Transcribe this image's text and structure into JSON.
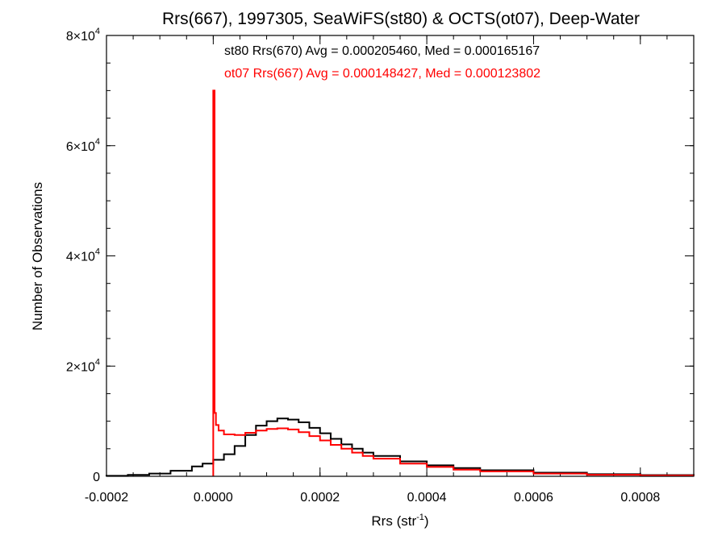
{
  "chart_data": {
    "type": "line",
    "title": "Rrs(667), 1997305, SeaWiFS(st80) & OCTS(ot07), Deep-Water",
    "xlabel": "Rrs (str",
    "xlabel_sup": "-1",
    "xlabel_suffix": ")",
    "ylabel": "Number of Observations",
    "xlim": [
      -0.0002,
      0.0009
    ],
    "ylim": [
      0,
      80000
    ],
    "x_ticks": [
      {
        "value": -0.0002,
        "label": "-0.0002"
      },
      {
        "value": 0.0,
        "label": "0.0000"
      },
      {
        "value": 0.0002,
        "label": "0.0002"
      },
      {
        "value": 0.0004,
        "label": "0.0004"
      },
      {
        "value": 0.0006,
        "label": "0.0006"
      },
      {
        "value": 0.0008,
        "label": "0.0008"
      }
    ],
    "y_ticks": [
      {
        "value": 0,
        "base": "0",
        "exp": ""
      },
      {
        "value": 20000,
        "base": "2×10",
        "exp": "4"
      },
      {
        "value": 40000,
        "base": "4×10",
        "exp": "4"
      },
      {
        "value": 60000,
        "base": "6×10",
        "exp": "4"
      },
      {
        "value": 80000,
        "base": "8×10",
        "exp": "4"
      }
    ],
    "x_minor_step": 5e-05,
    "y_minor_step": 5000,
    "series": [
      {
        "name": "st80 Rrs(670) Avg = 0.000205460, Med = 0.000165167",
        "color": "#000000",
        "points": [
          [
            -0.0002,
            100
          ],
          [
            -0.00016,
            250
          ],
          [
            -0.00012,
            500
          ],
          [
            -8e-05,
            1000
          ],
          [
            -4e-05,
            1800
          ],
          [
            -2e-05,
            2300
          ],
          [
            0.0,
            3000
          ],
          [
            2e-05,
            4000
          ],
          [
            4e-05,
            5500
          ],
          [
            6e-05,
            7500
          ],
          [
            8e-05,
            9200
          ],
          [
            0.0001,
            10000
          ],
          [
            0.00012,
            10500
          ],
          [
            0.00014,
            10300
          ],
          [
            0.00016,
            9800
          ],
          [
            0.00018,
            8800
          ],
          [
            0.0002,
            7800
          ],
          [
            0.00022,
            6800
          ],
          [
            0.00024,
            5800
          ],
          [
            0.00026,
            5000
          ],
          [
            0.00028,
            4300
          ],
          [
            0.0003,
            3700
          ],
          [
            0.00035,
            2700
          ],
          [
            0.0004,
            2000
          ],
          [
            0.00045,
            1500
          ],
          [
            0.0005,
            1100
          ],
          [
            0.0006,
            650
          ],
          [
            0.0007,
            380
          ],
          [
            0.0008,
            220
          ],
          [
            0.0009,
            120
          ]
        ]
      },
      {
        "name": "ot07 Rrs(667) Avg = 0.000148427, Med = 0.000123802",
        "color": "#ff0000",
        "points": [
          [
            0.0,
            70000
          ],
          [
            2.5e-06,
            11500
          ],
          [
            5e-06,
            9300
          ],
          [
            1e-05,
            8300
          ],
          [
            2e-05,
            7600
          ],
          [
            4e-05,
            7500
          ],
          [
            6e-05,
            7900
          ],
          [
            8e-05,
            8300
          ],
          [
            0.0001,
            8600
          ],
          [
            0.00012,
            8700
          ],
          [
            0.00014,
            8500
          ],
          [
            0.00016,
            8000
          ],
          [
            0.00018,
            7300
          ],
          [
            0.0002,
            6500
          ],
          [
            0.00022,
            5700
          ],
          [
            0.00024,
            5000
          ],
          [
            0.00026,
            4300
          ],
          [
            0.00028,
            3700
          ],
          [
            0.0003,
            3200
          ],
          [
            0.00035,
            2300
          ],
          [
            0.0004,
            1700
          ],
          [
            0.00045,
            1200
          ],
          [
            0.0005,
            900
          ],
          [
            0.0006,
            500
          ],
          [
            0.0007,
            280
          ],
          [
            0.0008,
            150
          ],
          [
            0.0009,
            80
          ]
        ]
      }
    ],
    "legend_placement": "top-center"
  }
}
